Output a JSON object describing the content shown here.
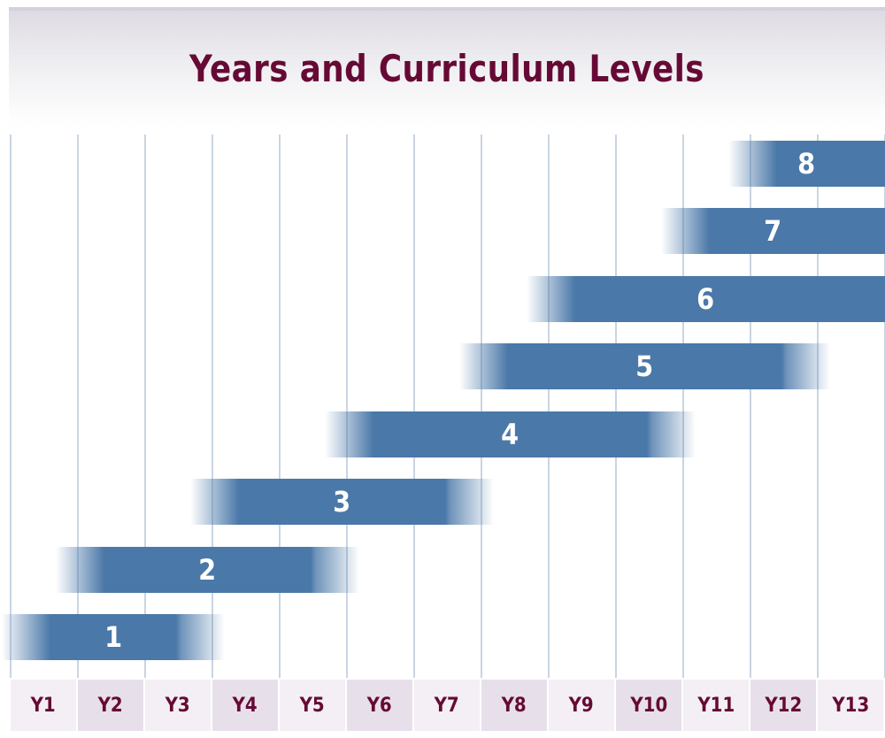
{
  "title": "Years and Curriculum Levels",
  "colors": {
    "title": "#660a35",
    "bar": "#4a78a8",
    "year_text": "#660a35",
    "year_cell_a": "#f3eff4",
    "year_cell_b": "#e7e0eb",
    "gridline": "#c9d5e2"
  },
  "years": [
    "Y1",
    "Y2",
    "Y3",
    "Y4",
    "Y5",
    "Y6",
    "Y7",
    "Y8",
    "Y9",
    "Y10",
    "Y11",
    "Y12",
    "Y13"
  ],
  "levels": [
    {
      "label": "1",
      "from_year": "Y1",
      "to_year": "Y3"
    },
    {
      "label": "2",
      "from_year": "Y2",
      "to_year": "Y5"
    },
    {
      "label": "3",
      "from_year": "Y4",
      "to_year": "Y7"
    },
    {
      "label": "4",
      "from_year": "Y6",
      "to_year": "Y10"
    },
    {
      "label": "5",
      "from_year": "Y8",
      "to_year": "Y12"
    },
    {
      "label": "6",
      "from_year": "Y9",
      "to_year": "Y13"
    },
    {
      "label": "7",
      "from_year": "Y11",
      "to_year": "Y13"
    },
    {
      "label": "8",
      "from_year": "Y12",
      "to_year": "Y13"
    }
  ]
}
